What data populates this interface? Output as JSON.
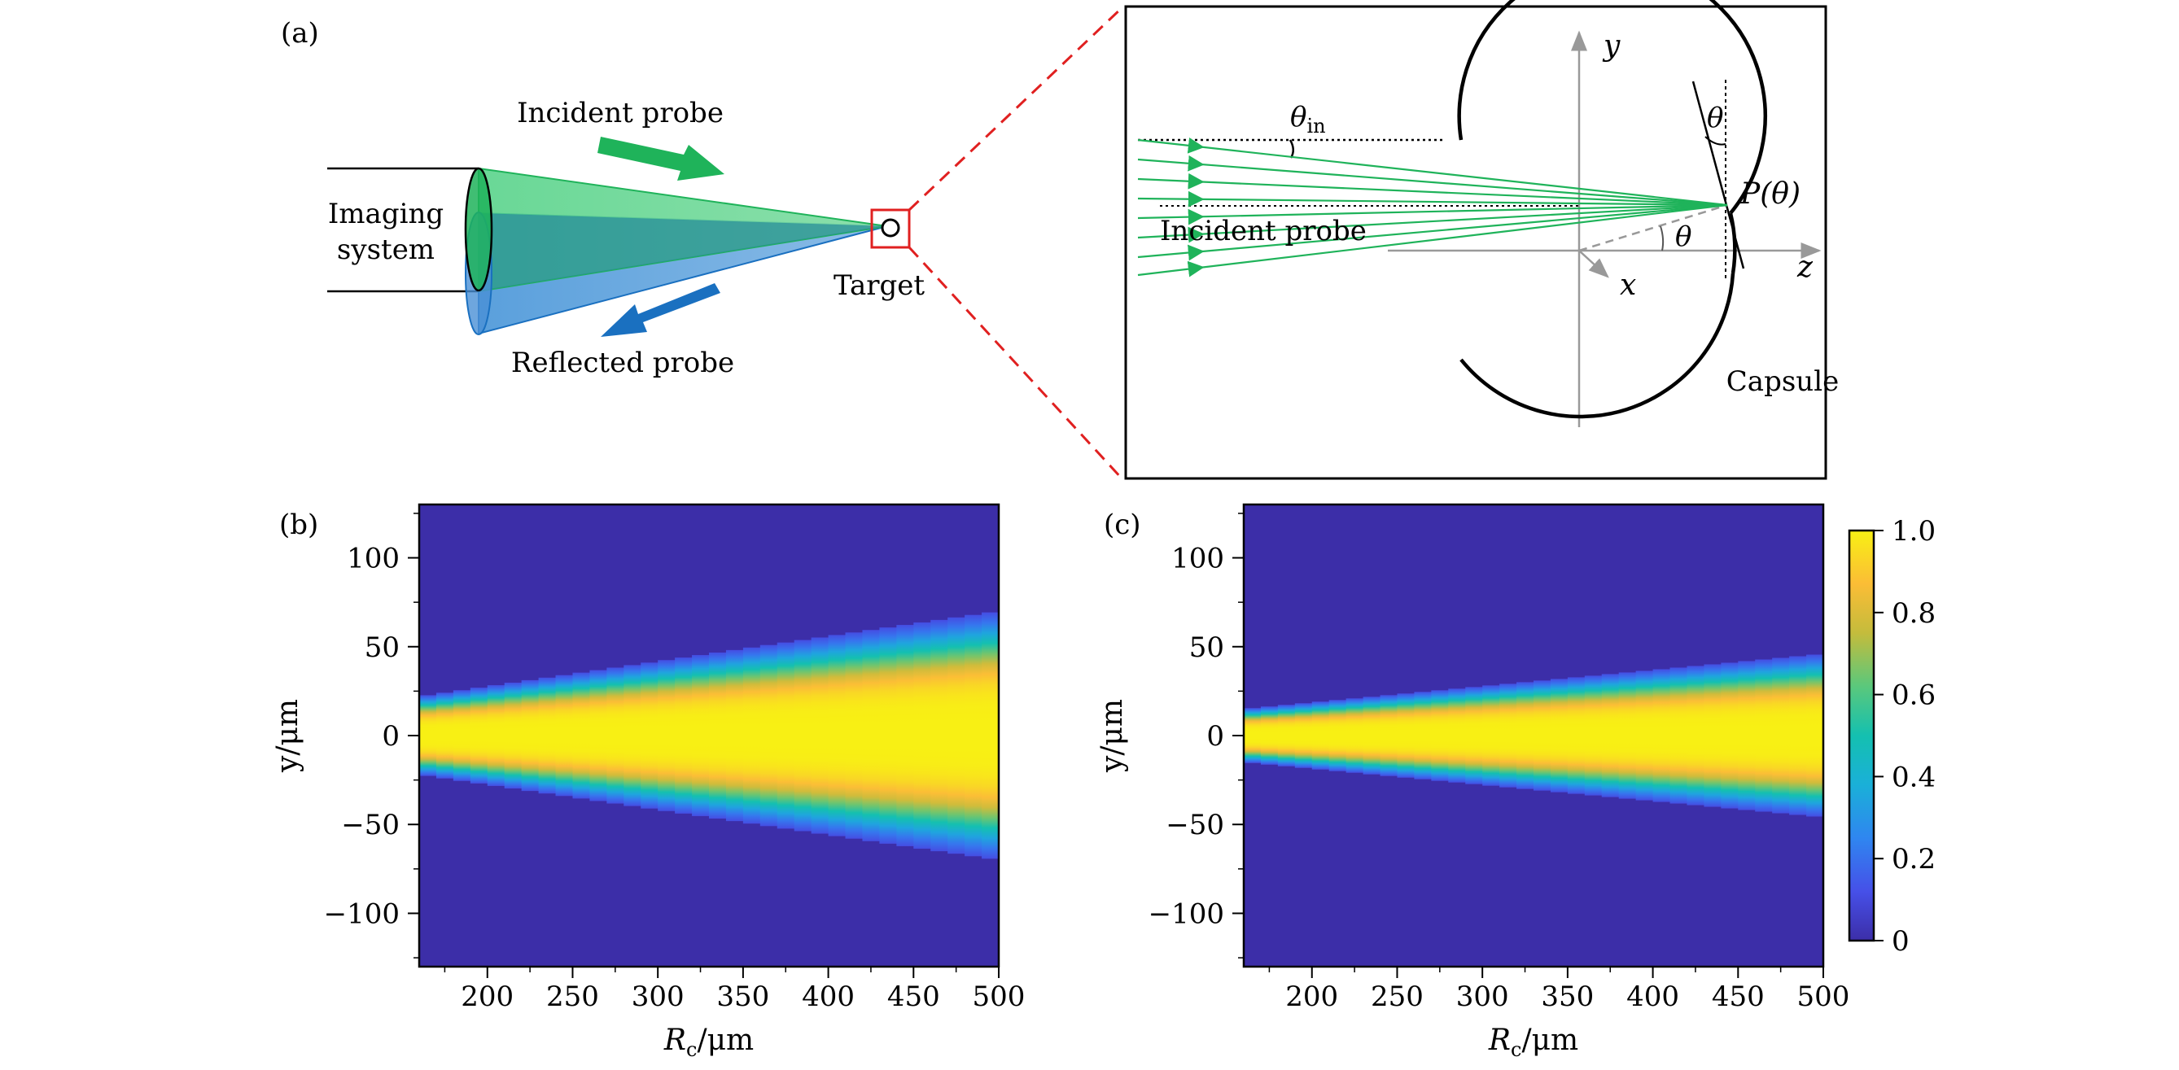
{
  "panel_a": {
    "label": "(a)",
    "incident_probe_label": "Incident probe",
    "reflected_probe_label": "Reflected probe",
    "imaging_system_line1": "Imaging",
    "imaging_system_line2": "system",
    "target_label": "Target",
    "inset": {
      "y_axis": "y",
      "x_axis": "x",
      "z_axis": "z",
      "theta_in_symbol": "θ",
      "theta_in_subscript": "in",
      "theta_symbol_top": "θ",
      "theta_symbol_bottom": "θ",
      "point_label": "P(θ)",
      "incident_probe_label": "Incident probe",
      "capsule_label": "Capsule"
    }
  },
  "chart_data": [
    {
      "type": "heatmap",
      "panel_label": "(b)",
      "title": "",
      "xlabel_main": "R",
      "xlabel_sub": "c",
      "xlabel_unit": "/μm",
      "ylabel": "y/μm",
      "xlim": [
        160,
        500
      ],
      "ylim": [
        -130,
        130
      ],
      "x_ticks": [
        200,
        250,
        300,
        350,
        400,
        450,
        500
      ],
      "y_ticks": [
        100,
        50,
        0,
        -50,
        -100
      ],
      "x_tick_labels": [
        "200",
        "250",
        "300",
        "350",
        "400",
        "450",
        "500"
      ],
      "y_tick_labels": [
        "100",
        "50",
        "0",
        "−50",
        "−100"
      ],
      "description_values": {
        "half_width_at_x160": 22,
        "half_width_at_x500": 70,
        "peak_value": 1.0,
        "background_value": 0
      }
    },
    {
      "type": "heatmap",
      "panel_label": "(c)",
      "title": "",
      "xlabel_main": "R",
      "xlabel_sub": "c",
      "xlabel_unit": "/μm",
      "ylabel": "y/μm",
      "xlim": [
        160,
        500
      ],
      "ylim": [
        -130,
        130
      ],
      "x_ticks": [
        200,
        250,
        300,
        350,
        400,
        450,
        500
      ],
      "y_ticks": [
        100,
        50,
        0,
        -50,
        -100
      ],
      "x_tick_labels": [
        "200",
        "250",
        "300",
        "350",
        "400",
        "450",
        "500"
      ],
      "y_tick_labels": [
        "100",
        "50",
        "0",
        "−50",
        "−100"
      ],
      "description_values": {
        "half_width_at_x160": 15,
        "half_width_at_x500": 46,
        "peak_value": 1.0,
        "background_value": 0
      }
    }
  ],
  "colorbar": {
    "ticks": [
      0,
      0.2,
      0.4,
      0.6,
      0.8,
      1.0
    ],
    "tick_labels": [
      "0",
      "0.2",
      "0.4",
      "0.6",
      "0.8",
      "1.0"
    ],
    "range": [
      0,
      1
    ]
  },
  "colors": {
    "incident_green": "#1fb35a",
    "reflected_blue": "#1a70c0",
    "target_red": "#e02020",
    "heatmap_background": "#3c2ea8"
  }
}
